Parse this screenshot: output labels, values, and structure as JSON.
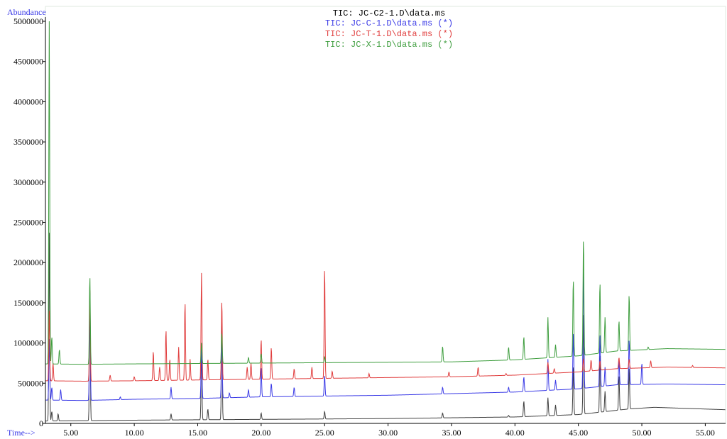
{
  "chart_data": {
    "type": "line",
    "title": "",
    "ylabel": "Abundance",
    "xlabel": "Time-->",
    "xlim": [
      3.0,
      56.6
    ],
    "ylim": [
      0,
      5000000
    ],
    "x_ticks": [
      5,
      10,
      15,
      20,
      25,
      30,
      35,
      40,
      45,
      50,
      55
    ],
    "x_tick_labels": [
      "5.00",
      "10.00",
      "15.00",
      "20.00",
      "25.00",
      "30.00",
      "35.00",
      "40.00",
      "45.00",
      "50.00",
      "55.00"
    ],
    "y_ticks": [
      0,
      500000,
      1000000,
      1500000,
      2000000,
      2500000,
      3000000,
      3500000,
      4000000,
      4500000,
      5000000
    ],
    "y_tick_labels": [
      "0",
      "500000",
      "1000000",
      "1500000",
      "2000000",
      "2500000",
      "3000000",
      "3500000",
      "4000000",
      "4500000",
      "5000000"
    ],
    "legend_position": "top-center",
    "grid": false,
    "series": [
      {
        "name": "TIC: JC-C2-1.D\\data.ms",
        "color": "#404040",
        "baseline": [
          [
            3.0,
            30000
          ],
          [
            10,
            40000
          ],
          [
            20,
            50000
          ],
          [
            30,
            60000
          ],
          [
            40,
            80000
          ],
          [
            45,
            110000
          ],
          [
            49,
            180000
          ],
          [
            51,
            200000
          ],
          [
            56.6,
            170000
          ]
        ],
        "peaks": [
          [
            3.3,
            2370000
          ],
          [
            3.5,
            150000
          ],
          [
            4.0,
            120000
          ],
          [
            6.5,
            1680000
          ],
          [
            12.9,
            120000
          ],
          [
            15.3,
            900000
          ],
          [
            15.8,
            180000
          ],
          [
            16.9,
            1300000
          ],
          [
            20.0,
            130000
          ],
          [
            25.0,
            150000
          ],
          [
            34.3,
            130000
          ],
          [
            39.5,
            100000
          ],
          [
            40.7,
            280000
          ],
          [
            42.6,
            320000
          ],
          [
            43.2,
            230000
          ],
          [
            44.6,
            720000
          ],
          [
            45.4,
            1400000
          ],
          [
            46.7,
            870000
          ],
          [
            47.1,
            400000
          ],
          [
            48.2,
            600000
          ],
          [
            49.0,
            700000
          ]
        ]
      },
      {
        "name": "TIC: JC-C-1.D\\data.ms (*)",
        "color": "#3a3ae6",
        "baseline": [
          [
            3.0,
            290000
          ],
          [
            6,
            285000
          ],
          [
            10,
            300000
          ],
          [
            15,
            310000
          ],
          [
            20,
            330000
          ],
          [
            25,
            340000
          ],
          [
            30,
            350000
          ],
          [
            35,
            370000
          ],
          [
            40,
            390000
          ],
          [
            45,
            430000
          ],
          [
            48,
            480000
          ],
          [
            52,
            490000
          ],
          [
            56.6,
            480000
          ]
        ],
        "peaks": [
          [
            3.3,
            1050000
          ],
          [
            3.5,
            450000
          ],
          [
            4.2,
            420000
          ],
          [
            6.5,
            1680000
          ],
          [
            8.9,
            330000
          ],
          [
            12.9,
            450000
          ],
          [
            15.3,
            1000000
          ],
          [
            16.9,
            1100000
          ],
          [
            17.5,
            380000
          ],
          [
            19.0,
            420000
          ],
          [
            20.0,
            700000
          ],
          [
            20.8,
            500000
          ],
          [
            22.6,
            450000
          ],
          [
            25.0,
            600000
          ],
          [
            34.3,
            450000
          ],
          [
            39.5,
            450000
          ],
          [
            40.7,
            580000
          ],
          [
            42.6,
            800000
          ],
          [
            43.2,
            540000
          ],
          [
            44.6,
            1140000
          ],
          [
            45.4,
            1960000
          ],
          [
            46.7,
            1120000
          ],
          [
            47.1,
            700000
          ],
          [
            48.2,
            800000
          ],
          [
            49.0,
            1050000
          ],
          [
            50.0,
            750000
          ]
        ]
      },
      {
        "name": "TIC: JC-T-1.D\\data.ms (*)",
        "color": "#e03c3c",
        "baseline": [
          [
            3.0,
            530000
          ],
          [
            6,
            525000
          ],
          [
            10,
            530000
          ],
          [
            15,
            540000
          ],
          [
            20,
            550000
          ],
          [
            25,
            560000
          ],
          [
            30,
            570000
          ],
          [
            35,
            580000
          ],
          [
            40,
            600000
          ],
          [
            45,
            640000
          ],
          [
            48,
            680000
          ],
          [
            52,
            700000
          ],
          [
            56.6,
            690000
          ]
        ],
        "peaks": [
          [
            3.3,
            1400000
          ],
          [
            3.6,
            750000
          ],
          [
            6.5,
            1700000
          ],
          [
            8.1,
            600000
          ],
          [
            10.0,
            580000
          ],
          [
            11.5,
            900000
          ],
          [
            12.0,
            700000
          ],
          [
            12.5,
            1170000
          ],
          [
            12.8,
            800000
          ],
          [
            13.5,
            950000
          ],
          [
            14.0,
            1520000
          ],
          [
            14.4,
            800000
          ],
          [
            15.3,
            1870000
          ],
          [
            15.8,
            800000
          ],
          [
            16.9,
            1540000
          ],
          [
            18.9,
            700000
          ],
          [
            19.2,
            750000
          ],
          [
            20.0,
            1050000
          ],
          [
            20.8,
            950000
          ],
          [
            22.6,
            680000
          ],
          [
            24.0,
            700000
          ],
          [
            25.0,
            1950000
          ],
          [
            25.6,
            650000
          ],
          [
            28.5,
            620000
          ],
          [
            34.8,
            640000
          ],
          [
            37.1,
            700000
          ],
          [
            39.3,
            620000
          ],
          [
            42.6,
            760000
          ],
          [
            43.1,
            680000
          ],
          [
            45.4,
            810000
          ],
          [
            46.0,
            790000
          ],
          [
            46.7,
            780000
          ],
          [
            48.2,
            820000
          ],
          [
            49.0,
            800000
          ],
          [
            50.7,
            780000
          ],
          [
            54.0,
            720000
          ]
        ]
      },
      {
        "name": "TIC: JC-X-1.D\\data.ms (*)",
        "color": "#3f9e3f",
        "baseline": [
          [
            3.0,
            740000
          ],
          [
            6,
            735000
          ],
          [
            10,
            740000
          ],
          [
            15,
            745000
          ],
          [
            20,
            750000
          ],
          [
            25,
            755000
          ],
          [
            30,
            760000
          ],
          [
            35,
            765000
          ],
          [
            40,
            790000
          ],
          [
            45,
            840000
          ],
          [
            48,
            900000
          ],
          [
            52,
            930000
          ],
          [
            56.6,
            920000
          ]
        ],
        "peaks": [
          [
            3.3,
            5000000
          ],
          [
            3.5,
            1080000
          ],
          [
            4.1,
            920000
          ],
          [
            6.5,
            1850000
          ],
          [
            15.3,
            1000000
          ],
          [
            16.9,
            1130000
          ],
          [
            19.0,
            820000
          ],
          [
            20.0,
            870000
          ],
          [
            25.0,
            830000
          ],
          [
            34.3,
            960000
          ],
          [
            39.5,
            950000
          ],
          [
            40.7,
            1080000
          ],
          [
            42.6,
            1320000
          ],
          [
            43.2,
            980000
          ],
          [
            44.6,
            1800000
          ],
          [
            45.4,
            2320000
          ],
          [
            46.7,
            1760000
          ],
          [
            47.1,
            1320000
          ],
          [
            48.2,
            1280000
          ],
          [
            49.0,
            1610000
          ],
          [
            50.5,
            950000
          ]
        ]
      }
    ]
  }
}
